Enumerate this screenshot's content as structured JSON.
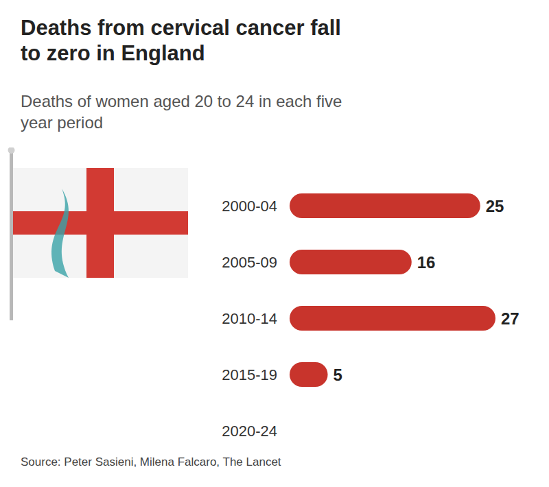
{
  "chart_data": {
    "type": "bar",
    "title": "Deaths from cervical cancer fall to zero in England",
    "subtitle": "Deaths of women aged 20 to 24 in each five year period",
    "source": "Source: Peter Sasieni, Milena Falcaro, The Lancet",
    "categories": [
      "2000-04",
      "2005-09",
      "2010-14",
      "2015-19",
      "2020-24"
    ],
    "values": [
      25,
      16,
      27,
      5,
      0
    ],
    "color": "#c8342c",
    "orientation": "horizontal",
    "data_labels": true,
    "tick_labels": "y",
    "xlim": [
      0,
      27
    ],
    "grid": false
  }
}
